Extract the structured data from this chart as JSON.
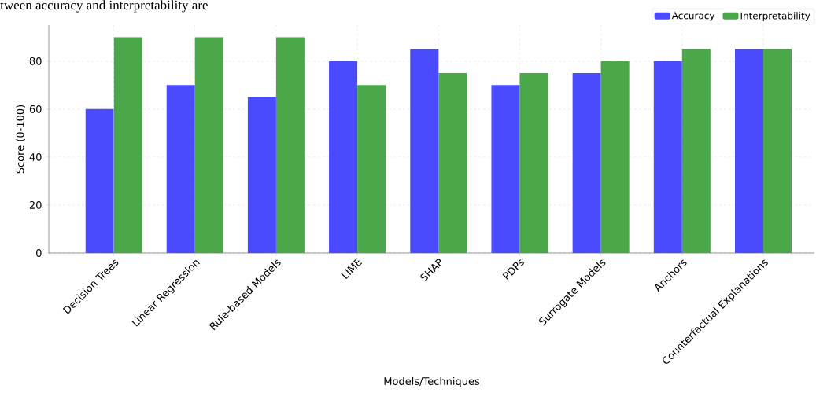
{
  "chart_data": {
    "type": "bar",
    "xlabel": "Models/Techniques",
    "ylabel": "Score (0-100)",
    "annotations": [
      "tween accuracy and interpretability are"
    ],
    "categories": [
      "Decision Trees",
      "Linear Regression",
      "Rule-based Models",
      "LIME",
      "SHAP",
      "PDPs",
      "Surrogate Models",
      "Anchors",
      "Counterfactual Explanations"
    ],
    "series": [
      {
        "name": "Accuracy",
        "color": "#4a4aff",
        "values": [
          60,
          70,
          65,
          80,
          85,
          70,
          75,
          80,
          85
        ]
      },
      {
        "name": "Interpretability",
        "color": "#4aa84a",
        "values": [
          90,
          90,
          90,
          70,
          75,
          75,
          80,
          85,
          85
        ]
      }
    ],
    "ylim": [
      0,
      95
    ],
    "yticks": [
      0,
      20,
      40,
      60,
      80
    ],
    "grid": true,
    "legend": "top right"
  }
}
